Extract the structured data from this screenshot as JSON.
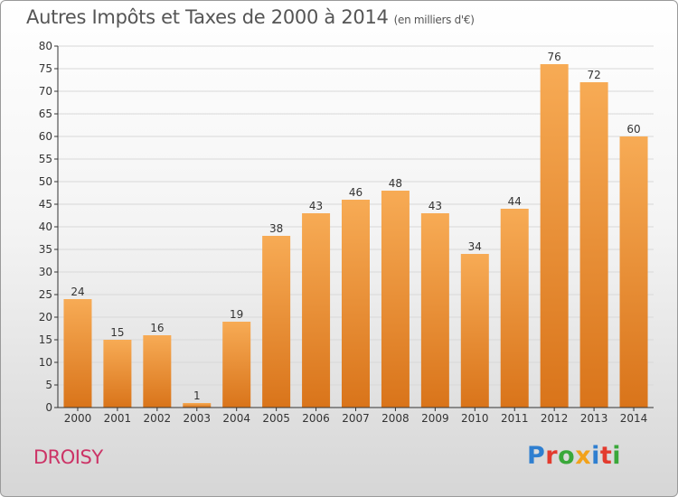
{
  "chart_data": {
    "type": "bar",
    "title": "Autres Impôts et Taxes de 2000 à 2014",
    "subtitle": "(en milliers d'€)",
    "xlabel": "",
    "ylabel": "",
    "categories": [
      "2000",
      "2001",
      "2002",
      "2003",
      "2004",
      "2005",
      "2006",
      "2007",
      "2008",
      "2009",
      "2010",
      "2011",
      "2012",
      "2013",
      "2014"
    ],
    "values": [
      24,
      15,
      16,
      1,
      19,
      38,
      43,
      46,
      48,
      43,
      34,
      44,
      76,
      72,
      60
    ],
    "ylim": [
      0,
      80
    ],
    "yticks": [
      0,
      5,
      10,
      15,
      20,
      25,
      30,
      35,
      40,
      45,
      50,
      55,
      60,
      65,
      70,
      75,
      80
    ],
    "grid": true,
    "bar_color": "#f0962e",
    "data_labels": true
  },
  "footer": {
    "commune": "DROISY",
    "logo_text": "Proxiti"
  },
  "colors": {
    "title": "#555555",
    "commune": "#cc3366",
    "bar_light": "#f7ab55",
    "bar_dark": "#d9741a",
    "grid": "#d8d8d8"
  }
}
